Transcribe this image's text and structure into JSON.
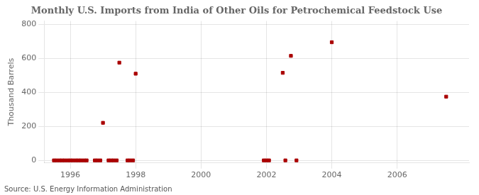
{
  "chart_data": {
    "type": "scatter",
    "title": "Monthly U.S. Imports from India of Other Oils for Petrochemical Feedstock Use",
    "ylabel": "Thousand Barrels",
    "annotations": [
      "Source: U.S. Energy Information Administration"
    ],
    "color": "#aa0000",
    "marker": "square",
    "grid": true,
    "xlim": [
      1995.2,
      2008.2
    ],
    "ylim": [
      -15,
      820
    ],
    "xticks": [
      1996,
      1998,
      2000,
      2002,
      2004,
      2006
    ],
    "yticks": [
      0,
      200,
      400,
      600,
      800
    ],
    "x": [
      1995.5,
      1995.58,
      1995.67,
      1995.75,
      1995.83,
      1995.92,
      1996.0,
      1996.08,
      1996.17,
      1996.25,
      1996.33,
      1996.42,
      1996.5,
      1996.75,
      1996.83,
      1996.92,
      1997.0,
      1997.17,
      1997.25,
      1997.33,
      1997.42,
      1997.5,
      1997.75,
      1997.83,
      1997.92,
      1998.0,
      2001.92,
      2002.0,
      2002.08,
      2002.5,
      2002.58,
      2002.75,
      2002.92,
      2004.0,
      2007.5
    ],
    "values": [
      0,
      0,
      0,
      0,
      0,
      0,
      0,
      0,
      0,
      0,
      0,
      0,
      0,
      0,
      0,
      0,
      221,
      0,
      0,
      0,
      0,
      575,
      0,
      0,
      0,
      510,
      0,
      0,
      0,
      515,
      0,
      615,
      0,
      695,
      375
    ]
  }
}
